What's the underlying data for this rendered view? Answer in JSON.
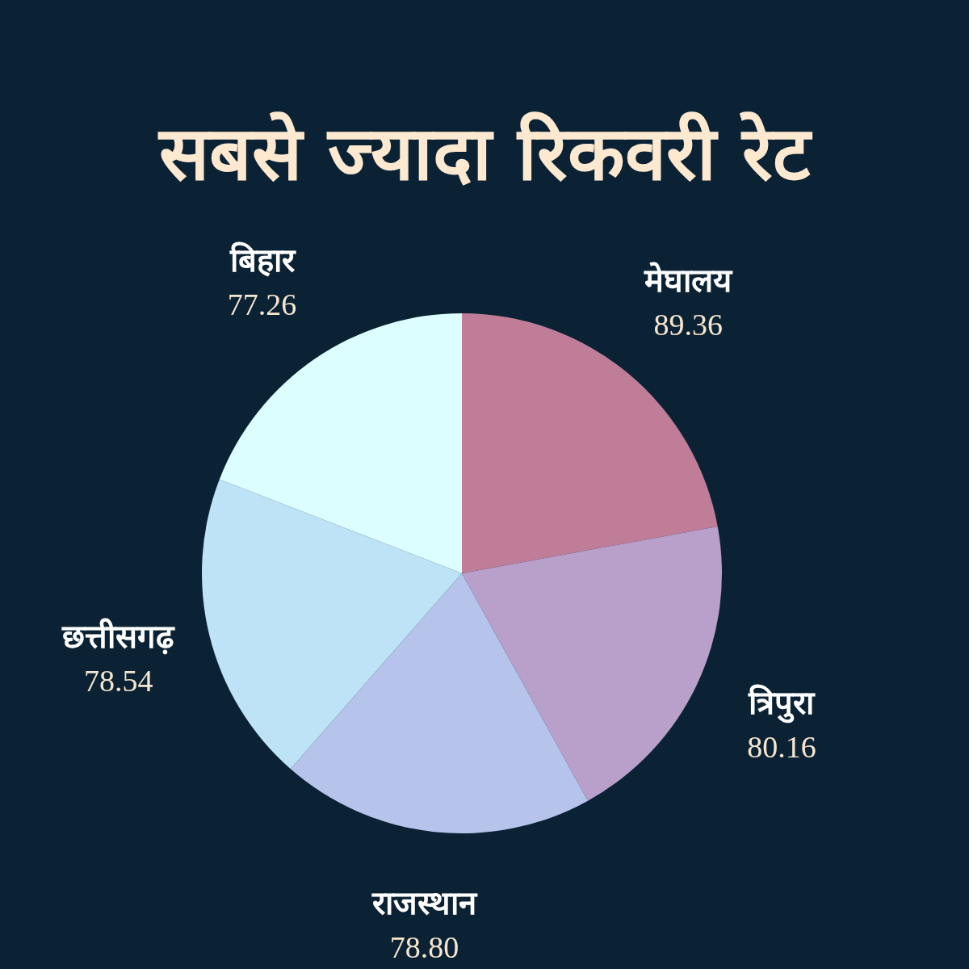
{
  "chart_data": {
    "type": "pie",
    "title": "सबसे ज्यादा रिकवरी रेट",
    "categories": [
      "मेघालय",
      "त्रिपुरा",
      "राजस्थान",
      "छत्तीसगढ़",
      "बिहार"
    ],
    "values": [
      89.36,
      80.16,
      78.8,
      78.54,
      77.26
    ],
    "value_labels": [
      "89.36",
      "80.16",
      "78.80",
      "78.54",
      "77.26"
    ],
    "colors": [
      "#c07d98",
      "#b9a0cb",
      "#b6c4ec",
      "#bfe3f6",
      "#dcfeff"
    ]
  }
}
